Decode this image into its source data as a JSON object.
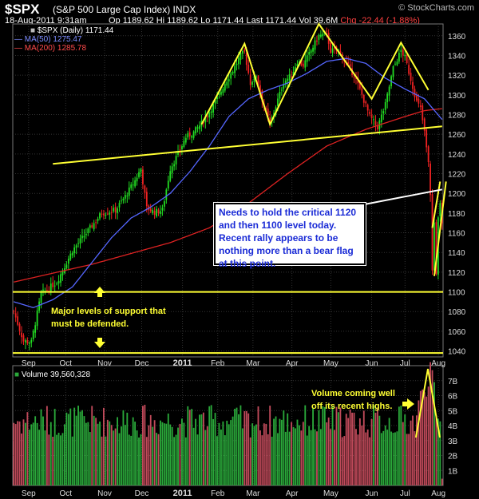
{
  "header": {
    "symbol": "$SPX",
    "name": "(S&P 500 Large Cap Index)  INDX",
    "brand": "© StockCharts.com",
    "date": "18-Aug-2011 9:31am",
    "ohlc": "Op 1189.62  Hi 1189.62  Lo 1171.44  Last 1171.44  Vol 39.6M",
    "change": "Chg -22.44 (-1.88%)"
  },
  "legend": {
    "price": "$SPX (Daily) 1171.44",
    "ma50": "MA(50) 1275.47",
    "ma200": "MA(200) 1285.78",
    "volume": "Volume 39,560,328"
  },
  "annotations": {
    "callout": "Needs to hold the critical 1120 and then 1100 level today. Recent rally appears to be nothing more than a bear flag at this point.",
    "support": "Major levels of support that must be defended.",
    "volume": "Volume coming well off its recent highs."
  },
  "colors": {
    "up": "#22dd22",
    "down": "#ee2222",
    "ma50": "#5566ff",
    "ma200": "#dd2222",
    "trendline": "#ffff33",
    "volume_up": "#2aa83a",
    "volume_down": "#c04a5a",
    "grid": "#333333"
  },
  "chart_data": {
    "type": "candlestick",
    "x_ticks": [
      "Sep",
      "Oct",
      "Nov",
      "Dec",
      "2011",
      "Feb",
      "Mar",
      "Apr",
      "May",
      "Jun",
      "Jul",
      "Aug"
    ],
    "price_axis": {
      "ylim": [
        1034,
        1372
      ],
      "ticks": [
        1040,
        1060,
        1080,
        1100,
        1120,
        1140,
        1160,
        1180,
        1200,
        1220,
        1240,
        1260,
        1280,
        1300,
        1320,
        1340,
        1360
      ]
    },
    "volume_axis": {
      "ylim": [
        0,
        8
      ],
      "ticks": [
        "1B",
        "2B",
        "3B",
        "4B",
        "5B",
        "6B",
        "7B"
      ],
      "tick_values": [
        1,
        2,
        3,
        4,
        5,
        6,
        7
      ]
    },
    "price_anchors": [
      [
        0,
        1080
      ],
      [
        5,
        1050
      ],
      [
        9,
        1049
      ],
      [
        14,
        1098
      ],
      [
        22,
        1110
      ],
      [
        30,
        1142
      ],
      [
        38,
        1162
      ],
      [
        45,
        1180
      ],
      [
        52,
        1183
      ],
      [
        57,
        1197
      ],
      [
        62,
        1213
      ],
      [
        65,
        1225
      ],
      [
        68,
        1185
      ],
      [
        72,
        1181
      ],
      [
        76,
        1183
      ],
      [
        80,
        1225
      ],
      [
        84,
        1240
      ],
      [
        88,
        1257
      ],
      [
        92,
        1262
      ],
      [
        96,
        1271
      ],
      [
        100,
        1283
      ],
      [
        104,
        1296
      ],
      [
        108,
        1312
      ],
      [
        112,
        1325
      ],
      [
        116,
        1340
      ],
      [
        118,
        1343
      ],
      [
        121,
        1312
      ],
      [
        124,
        1320
      ],
      [
        127,
        1295
      ],
      [
        131,
        1270
      ],
      [
        135,
        1295
      ],
      [
        138,
        1313
      ],
      [
        142,
        1320
      ],
      [
        145,
        1334
      ],
      [
        148,
        1330
      ],
      [
        152,
        1345
      ],
      [
        156,
        1360
      ],
      [
        160,
        1362
      ],
      [
        162,
        1345
      ],
      [
        166,
        1345
      ],
      [
        170,
        1332
      ],
      [
        174,
        1320
      ],
      [
        178,
        1300
      ],
      [
        182,
        1278
      ],
      [
        186,
        1267
      ],
      [
        190,
        1290
      ],
      [
        194,
        1327
      ],
      [
        198,
        1345
      ],
      [
        200,
        1338
      ],
      [
        203,
        1316
      ],
      [
        206,
        1293
      ],
      [
        208,
        1286
      ],
      [
        210,
        1262
      ],
      [
        212,
        1230
      ],
      [
        213,
        1200
      ],
      [
        214,
        1121
      ],
      [
        215,
        1170
      ],
      [
        216,
        1120
      ],
      [
        217,
        1178
      ],
      [
        218,
        1193
      ],
      [
        219,
        1171
      ]
    ],
    "ma50_anchors": [
      [
        0,
        1090
      ],
      [
        10,
        1084
      ],
      [
        20,
        1092
      ],
      [
        30,
        1105
      ],
      [
        40,
        1130
      ],
      [
        50,
        1155
      ],
      [
        60,
        1175
      ],
      [
        70,
        1186
      ],
      [
        80,
        1200
      ],
      [
        90,
        1222
      ],
      [
        100,
        1248
      ],
      [
        110,
        1278
      ],
      [
        120,
        1296
      ],
      [
        130,
        1305
      ],
      [
        140,
        1312
      ],
      [
        150,
        1322
      ],
      [
        160,
        1334
      ],
      [
        170,
        1337
      ],
      [
        180,
        1332
      ],
      [
        190,
        1317
      ],
      [
        200,
        1306
      ],
      [
        210,
        1296
      ],
      [
        219,
        1275
      ]
    ],
    "ma200_anchors": [
      [
        0,
        1110
      ],
      [
        40,
        1128
      ],
      [
        80,
        1150
      ],
      [
        100,
        1165
      ],
      [
        120,
        1190
      ],
      [
        140,
        1220
      ],
      [
        160,
        1248
      ],
      [
        180,
        1265
      ],
      [
        200,
        1278
      ],
      [
        210,
        1284
      ],
      [
        219,
        1286
      ]
    ],
    "trendlines": [
      {
        "label": "neckline",
        "points": [
          [
            20,
            1230
          ],
          [
            219,
            1268
          ]
        ]
      },
      {
        "label": "head-and-shoulders",
        "points": [
          [
            96,
            1270
          ],
          [
            118,
            1352
          ],
          [
            131,
            1270
          ],
          [
            156,
            1372
          ],
          [
            183,
            1296
          ],
          [
            198,
            1353
          ],
          [
            212,
            1305
          ]
        ]
      },
      {
        "label": "bear-flag",
        "points": [
          [
            214,
            1165
          ],
          [
            218,
            1212
          ]
        ]
      },
      {
        "label": "bear-flag",
        "points": [
          [
            215,
            1116
          ],
          [
            221,
            1212
          ]
        ]
      },
      {
        "label": "callout-pointer",
        "points": [
          [
            219,
            1204
          ],
          [
            164,
            1183
          ]
        ]
      }
    ],
    "horizontal_levels": [
      1100,
      1038
    ]
  }
}
